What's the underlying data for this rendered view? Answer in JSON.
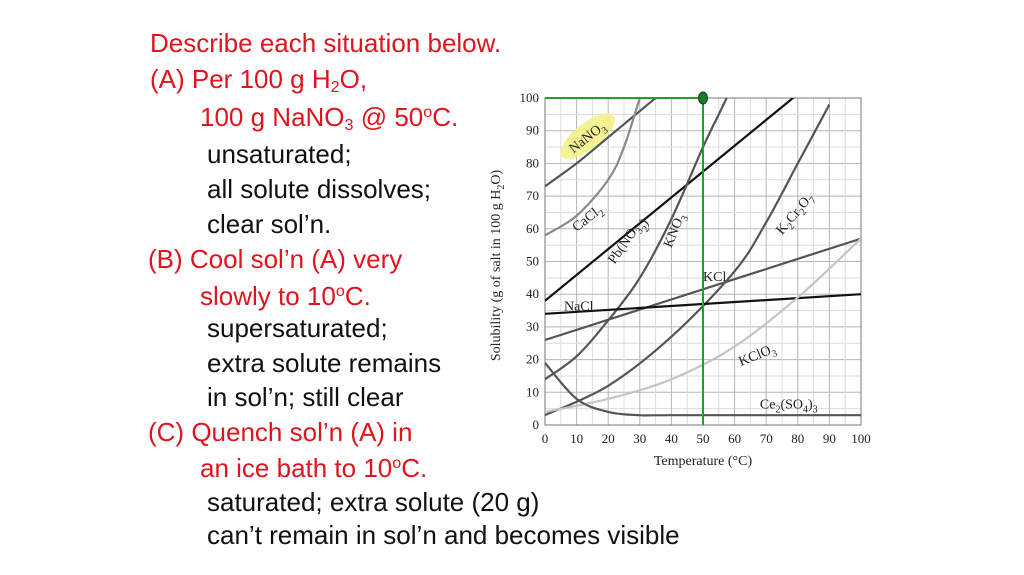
{
  "slide": {
    "heading": "Describe each situation below.",
    "part_a": {
      "line1_pre": "(A) Per 100 g H",
      "line1_sub": "2",
      "line1_post": "O,",
      "line2_pre": "100 g NaNO",
      "line2_sub": "3",
      "line2_mid": " @ 50",
      "line2_sup": "o",
      "line2_post": "C.",
      "answer": [
        "unsaturated;",
        "all solute dissolves;",
        "clear sol’n."
      ]
    },
    "part_b": {
      "line1": "(B) Cool sol’n (A) very",
      "line2_pre": "slowly to 10",
      "line2_sup": "o",
      "line2_post": "C.",
      "answer": [
        "supersaturated;",
        "extra solute remains",
        "in sol’n; still clear"
      ]
    },
    "part_c": {
      "line1": "(C) Quench sol’n (A) in",
      "line2_pre": "an ice bath to 10",
      "line2_sup": "o",
      "line2_post": "C.",
      "answer": [
        "saturated; extra solute (20 g)",
        "can’t remain in sol’n and becomes visible"
      ]
    }
  },
  "chart_data": {
    "type": "line",
    "xlabel": "Temperature (°C)",
    "ylabel_pre": "Solubility (g of salt in 100 g H",
    "ylabel_sub": "2",
    "ylabel_post": "O)",
    "xlim": [
      0,
      100
    ],
    "ylim": [
      0,
      100
    ],
    "x_ticks": [
      0,
      10,
      20,
      30,
      40,
      50,
      60,
      70,
      80,
      90,
      100
    ],
    "y_ticks": [
      0,
      10,
      20,
      30,
      40,
      50,
      60,
      70,
      80,
      90,
      100
    ],
    "grid": true,
    "colors": {
      "highlight": "#f4ef8a",
      "marker_line": "#22a01e",
      "marker_dot": "#1d7a2b",
      "dark": "#111111",
      "mid": "#555555",
      "light": "#8a8a8a",
      "pale": "#c4c4c4"
    },
    "series": [
      {
        "name": "NaNO3",
        "shade": "mid",
        "x": [
          0,
          10,
          20,
          30,
          35
        ],
        "y": [
          73,
          80,
          88,
          96,
          100
        ]
      },
      {
        "name": "CaCl2",
        "shade": "light",
        "x": [
          0,
          10,
          20,
          25,
          30
        ],
        "y": [
          58,
          64,
          75,
          85,
          100
        ]
      },
      {
        "name": "Pb(NO3)2",
        "shade": "dark",
        "x": [
          0,
          100
        ],
        "y": [
          38,
          117
        ]
      },
      {
        "name": "KNO3",
        "shade": "mid",
        "x": [
          0,
          10,
          20,
          30,
          40,
          50,
          55,
          60
        ],
        "y": [
          14,
          21,
          32,
          45,
          63,
          85,
          95,
          105
        ]
      },
      {
        "name": "K2Cr2O7",
        "shade": "mid",
        "x": [
          0,
          20,
          40,
          60,
          70,
          80,
          90
        ],
        "y": [
          3,
          12,
          27,
          47,
          62,
          80,
          98
        ]
      },
      {
        "name": "KCl",
        "shade": "mid",
        "x": [
          0,
          100
        ],
        "y": [
          26,
          57
        ]
      },
      {
        "name": "NaCl",
        "shade": "dark",
        "x": [
          0,
          100
        ],
        "y": [
          34,
          40
        ]
      },
      {
        "name": "KClO3",
        "shade": "pale",
        "x": [
          0,
          20,
          40,
          60,
          80,
          100
        ],
        "y": [
          4,
          8,
          14,
          24,
          39,
          57
        ]
      },
      {
        "name": "Ce2(SO4)3",
        "shade": "mid",
        "x": [
          0,
          10,
          20,
          30,
          40,
          100
        ],
        "y": [
          19,
          8,
          4,
          3,
          3,
          3
        ]
      }
    ],
    "labels": [
      {
        "text": "NaNO",
        "sub": "3",
        "x": 9,
        "y": 83,
        "rotate": -38,
        "highlight": true
      },
      {
        "text": "CaCl",
        "sub": "2",
        "x": 10,
        "y": 59,
        "rotate": -38
      },
      {
        "text": "Pb(NO",
        "sub": "3",
        "post": ")",
        "sub2": "2",
        "x": 22,
        "y": 49,
        "rotate": -55
      },
      {
        "text": "KNO",
        "sub": "3",
        "x": 40,
        "y": 54,
        "rotate": -68
      },
      {
        "text": "K",
        "sub": "2",
        "mid": "Cr",
        "sub2": "2",
        "post": "O",
        "sub3": "7",
        "x": 75,
        "y": 58,
        "rotate": -50
      },
      {
        "text": "KCl",
        "x": 50,
        "y": 44,
        "rotate": 0
      },
      {
        "text": "NaCl",
        "x": 6,
        "y": 35,
        "rotate": 0
      },
      {
        "text": "KClO",
        "sub": "3",
        "x": 62,
        "y": 18,
        "rotate": -22
      },
      {
        "text": "Ce",
        "sub": "2",
        "mid": "(SO",
        "sub2": "4",
        "post": ")",
        "sub3": "3",
        "x": 68,
        "y": 5,
        "rotate": 0
      }
    ],
    "marker": {
      "x": 50,
      "y": 100
    }
  }
}
